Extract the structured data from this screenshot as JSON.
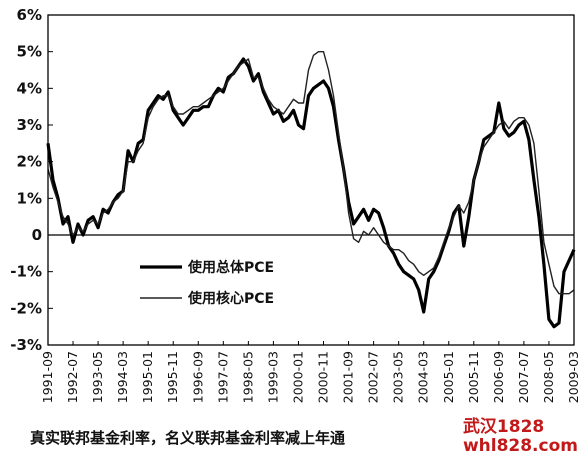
{
  "chart_data": {
    "type": "line",
    "title": "",
    "xlabel": "",
    "ylabel": "",
    "ylim": [
      -3,
      6
    ],
    "yticks": [
      -3,
      -2,
      -1,
      0,
      1,
      2,
      3,
      4,
      5,
      6
    ],
    "ytick_labels": [
      "-3%",
      "-2%",
      "-1%",
      "0",
      "1%",
      "2%",
      "3%",
      "4%",
      "5%",
      "6%"
    ],
    "xlim": [
      1991.667,
      2009.167
    ],
    "x_tick_labels": [
      "1991-09",
      "1992-07",
      "1993-05",
      "1994-03",
      "1995-01",
      "1995-11",
      "1996-09",
      "1997-07",
      "1998-05",
      "1999-03",
      "2000-01",
      "2000-11",
      "2001-09",
      "2002-07",
      "2003-05",
      "2004-03",
      "2005-01",
      "2005-11",
      "2006-09",
      "2007-07",
      "2008-05",
      "2009-03"
    ],
    "grid": false,
    "legend_position": "lower-left",
    "series": [
      {
        "name": "使用总体PCE",
        "color": "#000000",
        "x": [
          "1991-09",
          "1991-11",
          "1992-01",
          "1992-03",
          "1992-05",
          "1992-07",
          "1992-09",
          "1992-11",
          "1993-01",
          "1993-03",
          "1993-05",
          "1993-07",
          "1993-09",
          "1993-11",
          "1994-01",
          "1994-03",
          "1994-05",
          "1994-07",
          "1994-09",
          "1994-11",
          "1995-01",
          "1995-03",
          "1995-05",
          "1995-07",
          "1995-09",
          "1995-11",
          "1996-01",
          "1996-03",
          "1996-05",
          "1996-07",
          "1996-09",
          "1996-11",
          "1997-01",
          "1997-03",
          "1997-05",
          "1997-07",
          "1997-09",
          "1997-11",
          "1998-01",
          "1998-03",
          "1998-05",
          "1998-07",
          "1998-09",
          "1998-11",
          "1999-01",
          "1999-03",
          "1999-05",
          "1999-07",
          "1999-09",
          "1999-11",
          "2000-01",
          "2000-03",
          "2000-05",
          "2000-07",
          "2000-09",
          "2000-11",
          "2001-01",
          "2001-03",
          "2001-05",
          "2001-07",
          "2001-09",
          "2001-11",
          "2002-01",
          "2002-03",
          "2002-05",
          "2002-07",
          "2002-09",
          "2002-11",
          "2003-01",
          "2003-03",
          "2003-05",
          "2003-07",
          "2003-09",
          "2003-11",
          "2004-01",
          "2004-03",
          "2004-05",
          "2004-07",
          "2004-09",
          "2004-11",
          "2005-01",
          "2005-03",
          "2005-05",
          "2005-07",
          "2005-09",
          "2005-11",
          "2006-01",
          "2006-03",
          "2006-05",
          "2006-07",
          "2006-09",
          "2006-11",
          "2007-01",
          "2007-03",
          "2007-05",
          "2007-07",
          "2007-09",
          "2007-11",
          "2008-01",
          "2008-03",
          "2008-05",
          "2008-07",
          "2008-09",
          "2008-11",
          "2009-01",
          "2009-03"
        ],
        "values": [
          2.5,
          1.5,
          1.0,
          0.3,
          0.5,
          -0.2,
          0.3,
          0.0,
          0.4,
          0.5,
          0.2,
          0.7,
          0.6,
          0.9,
          1.1,
          1.2,
          2.3,
          2.0,
          2.5,
          2.6,
          3.4,
          3.6,
          3.8,
          3.7,
          3.9,
          3.4,
          3.2,
          3.0,
          3.2,
          3.4,
          3.4,
          3.5,
          3.5,
          3.8,
          4.0,
          3.9,
          4.3,
          4.4,
          4.6,
          4.8,
          4.6,
          4.2,
          4.4,
          3.9,
          3.6,
          3.3,
          3.4,
          3.1,
          3.2,
          3.4,
          3.0,
          2.9,
          3.8,
          4.0,
          4.1,
          4.2,
          4.0,
          3.5,
          2.6,
          1.8,
          0.9,
          0.3,
          0.5,
          0.7,
          0.4,
          0.7,
          0.6,
          0.2,
          -0.3,
          -0.5,
          -0.8,
          -1.0,
          -1.1,
          -1.2,
          -1.5,
          -2.1,
          -1.2,
          -1.0,
          -0.7,
          -0.3,
          0.1,
          0.6,
          0.8,
          -0.3,
          0.5,
          1.5,
          2.0,
          2.6,
          2.7,
          2.8,
          3.6,
          2.9,
          2.7,
          2.8,
          3.0,
          3.1,
          2.6,
          1.5,
          0.5,
          -0.8,
          -2.3,
          -2.5,
          -2.4,
          -1.0,
          -0.7,
          -0.4
        ]
      },
      {
        "name": "使用核心PCE",
        "color": "#222222",
        "x": [
          "1991-09",
          "1991-11",
          "1992-01",
          "1992-03",
          "1992-05",
          "1992-07",
          "1992-09",
          "1992-11",
          "1993-01",
          "1993-03",
          "1993-05",
          "1993-07",
          "1993-09",
          "1993-11",
          "1994-01",
          "1994-03",
          "1994-05",
          "1994-07",
          "1994-09",
          "1994-11",
          "1995-01",
          "1995-03",
          "1995-05",
          "1995-07",
          "1995-09",
          "1995-11",
          "1996-01",
          "1996-03",
          "1996-05",
          "1996-07",
          "1996-09",
          "1996-11",
          "1997-01",
          "1997-03",
          "1997-05",
          "1997-07",
          "1997-09",
          "1997-11",
          "1998-01",
          "1998-03",
          "1998-05",
          "1998-07",
          "1998-09",
          "1998-11",
          "1999-01",
          "1999-03",
          "1999-05",
          "1999-07",
          "1999-09",
          "1999-11",
          "2000-01",
          "2000-03",
          "2000-05",
          "2000-07",
          "2000-09",
          "2000-11",
          "2001-01",
          "2001-03",
          "2001-05",
          "2001-07",
          "2001-09",
          "2001-11",
          "2002-01",
          "2002-03",
          "2002-05",
          "2002-07",
          "2002-09",
          "2002-11",
          "2003-01",
          "2003-03",
          "2003-05",
          "2003-07",
          "2003-09",
          "2003-11",
          "2004-01",
          "2004-03",
          "2004-05",
          "2004-07",
          "2004-09",
          "2004-11",
          "2005-01",
          "2005-03",
          "2005-05",
          "2005-07",
          "2005-09",
          "2005-11",
          "2006-01",
          "2006-03",
          "2006-05",
          "2006-07",
          "2006-09",
          "2006-11",
          "2007-01",
          "2007-03",
          "2007-05",
          "2007-07",
          "2007-09",
          "2007-11",
          "2008-01",
          "2008-03",
          "2008-05",
          "2008-07",
          "2008-09",
          "2008-11",
          "2009-01",
          "2009-03"
        ],
        "values": [
          1.8,
          1.3,
          0.9,
          0.5,
          0.3,
          0.0,
          0.2,
          0.1,
          0.3,
          0.4,
          0.3,
          0.6,
          0.7,
          0.9,
          1.0,
          1.2,
          2.0,
          2.0,
          2.3,
          2.5,
          3.2,
          3.5,
          3.7,
          3.8,
          3.8,
          3.5,
          3.3,
          3.3,
          3.4,
          3.5,
          3.5,
          3.6,
          3.7,
          3.8,
          3.9,
          4.0,
          4.2,
          4.4,
          4.6,
          4.7,
          4.8,
          4.3,
          4.3,
          4.0,
          3.7,
          3.5,
          3.4,
          3.3,
          3.5,
          3.7,
          3.6,
          3.6,
          4.5,
          4.9,
          5.0,
          5.0,
          4.5,
          3.8,
          2.8,
          1.8,
          0.6,
          -0.1,
          -0.2,
          0.1,
          0.0,
          0.2,
          0.0,
          -0.2,
          -0.3,
          -0.4,
          -0.4,
          -0.5,
          -0.7,
          -0.8,
          -1.0,
          -1.1,
          -1.0,
          -0.9,
          -0.6,
          -0.2,
          0.2,
          0.5,
          0.8,
          0.6,
          0.9,
          1.5,
          2.0,
          2.4,
          2.6,
          2.8,
          3.0,
          3.1,
          2.9,
          3.1,
          3.2,
          3.2,
          3.0,
          2.5,
          1.2,
          -0.2,
          -0.8,
          -1.4,
          -1.6,
          -1.6,
          -1.6,
          -1.5
        ]
      }
    ]
  },
  "caption": "真实联邦基金利率，名义联邦基金利率减上年通",
  "watermark": {
    "line1": "武汉1828",
    "line2": "whl828.com"
  }
}
